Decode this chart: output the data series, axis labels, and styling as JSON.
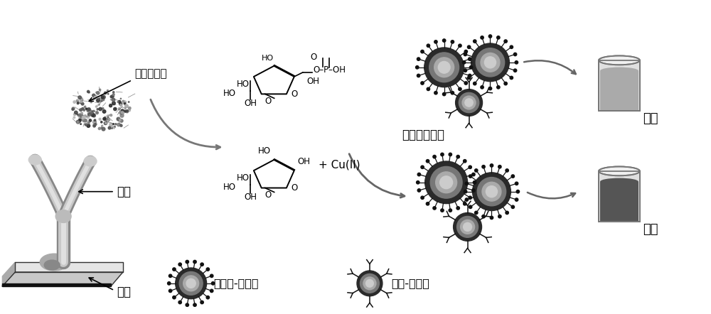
{
  "bg_color": "#ffffff",
  "labels": {
    "alkaline_phosphatase": "碱性磷酸酶",
    "antibody": "抗体",
    "antigen": "抗原",
    "click_chemistry": "点击化学反应",
    "azide_nano_gold": "叠氮基-纳米金",
    "alkyne_nano_gold": "炔基-纳米金",
    "red": "红色",
    "blue": "蓝色",
    "cu_ii": "+ Cu(II)"
  },
  "colors": {
    "black": "#000000",
    "dark_gray": "#333333",
    "gray": "#888888",
    "med_gray": "#aaaaaa",
    "light_gray": "#cccccc",
    "white": "#ffffff",
    "sphere_outer": "#666666",
    "sphere_inner": "#bbbbbb",
    "beaker_body": "#d8d8d8",
    "beaker_fill_red": "#888888",
    "beaker_fill_blue": "#555555",
    "arrow_gray": "#666666"
  }
}
